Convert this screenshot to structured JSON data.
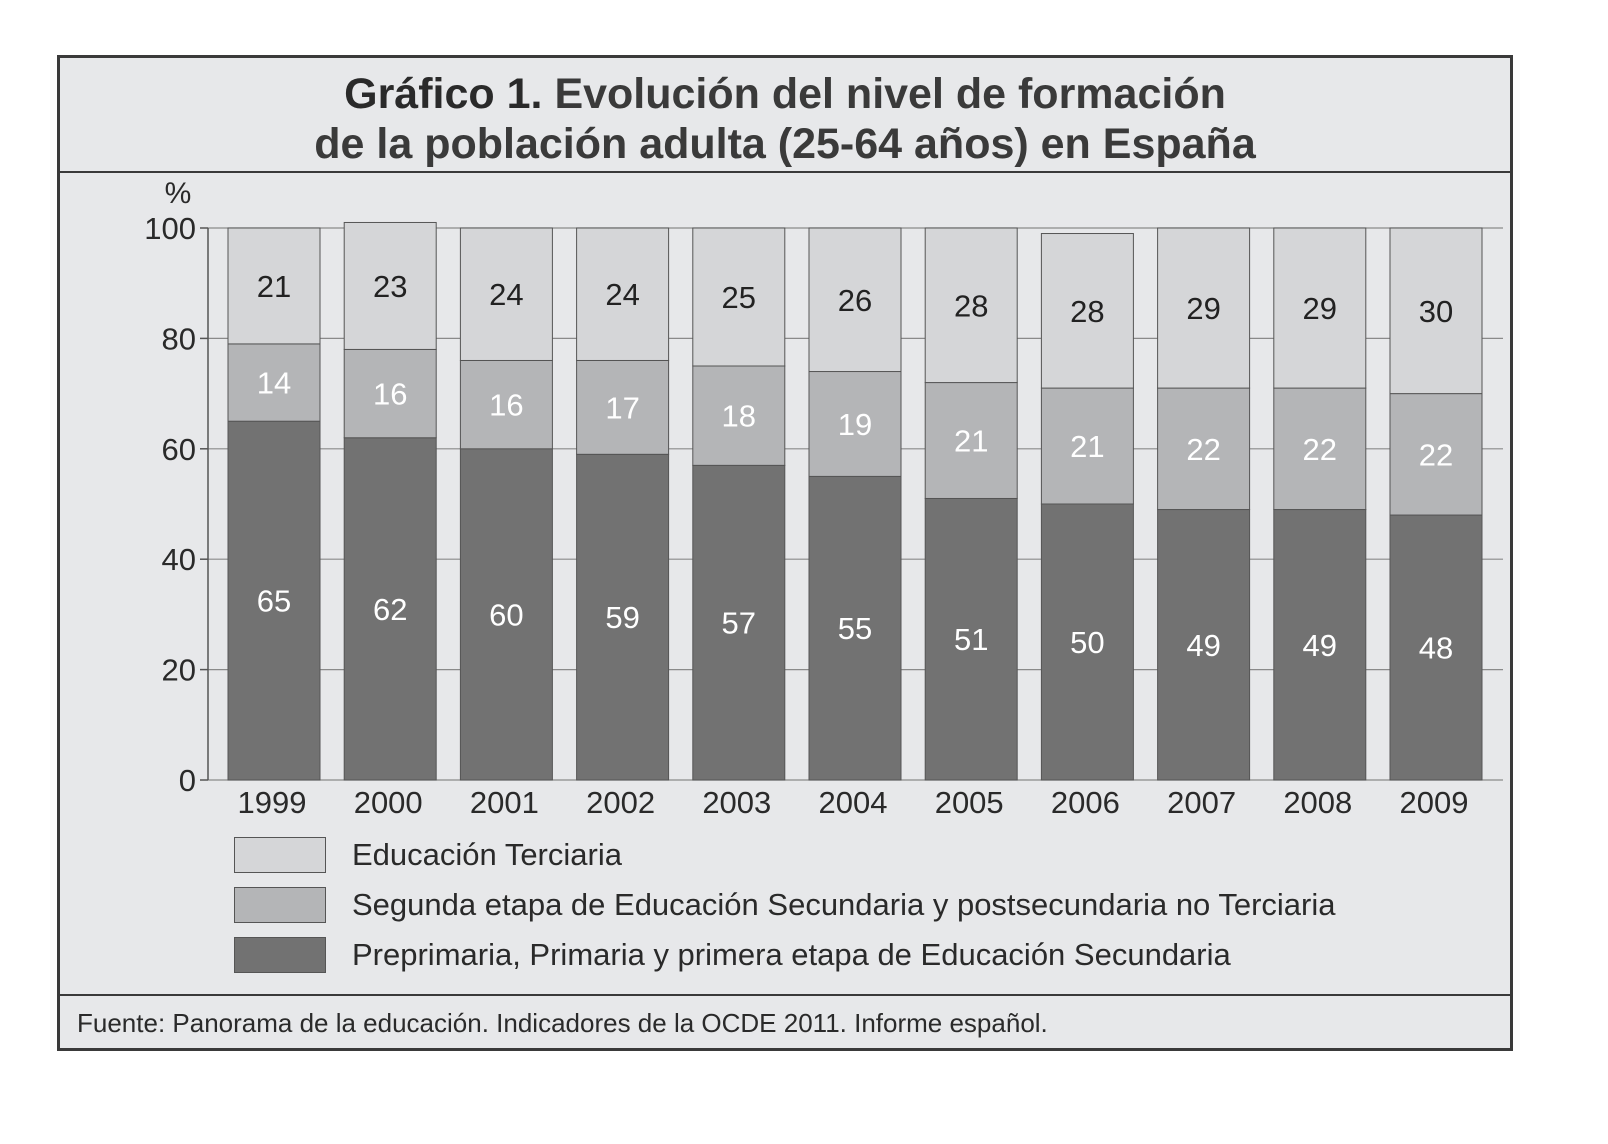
{
  "title": {
    "prefix": "Gráfico 1.",
    "line1": "Evolución del nivel de formación",
    "line2": "de la población adulta (25-64 años) en España"
  },
  "source": "Fuente: Panorama de la educación. Indicadores de la OCDE 2011. Informe español.",
  "colors": {
    "background": "#e7e8ea",
    "terciaria": "#d5d6d8",
    "segunda": "#b4b5b7",
    "preprimaria": "#727272",
    "frame": "#3a3a3a"
  },
  "chart_data": {
    "type": "bar",
    "stacked": true,
    "ylabel": "%",
    "ylim": [
      0,
      100
    ],
    "yticks": [
      0,
      20,
      40,
      60,
      80,
      100
    ],
    "grid": true,
    "categories": [
      "1999",
      "2000",
      "2001",
      "2002",
      "2003",
      "2004",
      "2005",
      "2006",
      "2007",
      "2008",
      "2009"
    ],
    "series": [
      {
        "name": "Preprimaria, Primaria y primera etapa de Educación Secundaria",
        "color": "#727272",
        "label_color": "#ffffff",
        "values": [
          65,
          62,
          60,
          59,
          57,
          55,
          51,
          50,
          49,
          49,
          48
        ]
      },
      {
        "name": "Segunda etapa de Educación Secundaria y postsecundaria no Terciaria",
        "color": "#b4b5b7",
        "label_color": "#ffffff",
        "values": [
          14,
          16,
          16,
          17,
          18,
          19,
          21,
          21,
          22,
          22,
          22
        ]
      },
      {
        "name": "Educación Terciaria",
        "color": "#d5d6d8",
        "label_color": "#222222",
        "values": [
          21,
          23,
          24,
          24,
          25,
          26,
          28,
          28,
          29,
          29,
          30
        ]
      }
    ],
    "legend": {
      "placement": "bottom",
      "order": [
        "Educación Terciaria",
        "Segunda etapa de Educación Secundaria y postsecundaria no Terciaria",
        "Preprimaria, Primaria y primera etapa de Educación Secundaria"
      ]
    }
  }
}
